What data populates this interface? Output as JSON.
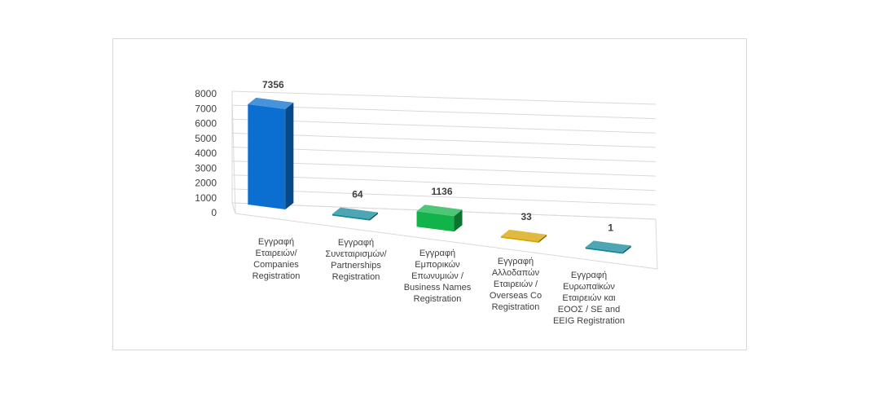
{
  "chart_data": {
    "type": "bar",
    "three_d": true,
    "categories": [
      [
        "Εγγραφή",
        "Εταιρειών/",
        "Companies",
        "Registration"
      ],
      [
        "Εγγραφή",
        "Συνεταιρισμών/",
        "Partnerships",
        "Registration"
      ],
      [
        "Εγγραφή",
        "Εμπορικών",
        "Επωνυμιών /",
        "Business Names",
        "Registration"
      ],
      [
        "Εγγραφή",
        "Αλλοδαπών",
        "Εταιρειών /",
        "Overseas Co",
        "Registration"
      ],
      [
        "Εγγραφή",
        "Ευρωπαϊκών",
        "Εταιρειών και",
        "ΕΟΟΣ / SE and",
        "EEIG Registration"
      ]
    ],
    "values": [
      7356,
      64,
      1136,
      33,
      1
    ],
    "data_labels": [
      "7356",
      "64",
      "1136",
      "33",
      "1"
    ],
    "y_ticks": [
      "0",
      "1000",
      "2000",
      "3000",
      "4000",
      "5000",
      "6000",
      "7000",
      "8000"
    ],
    "ylim": [
      0,
      8000
    ],
    "grid": true,
    "legend": "none",
    "colors": [
      "#0a6fd0",
      "#13879a",
      "#12b34a",
      "#d6a300",
      "#13879a"
    ]
  }
}
